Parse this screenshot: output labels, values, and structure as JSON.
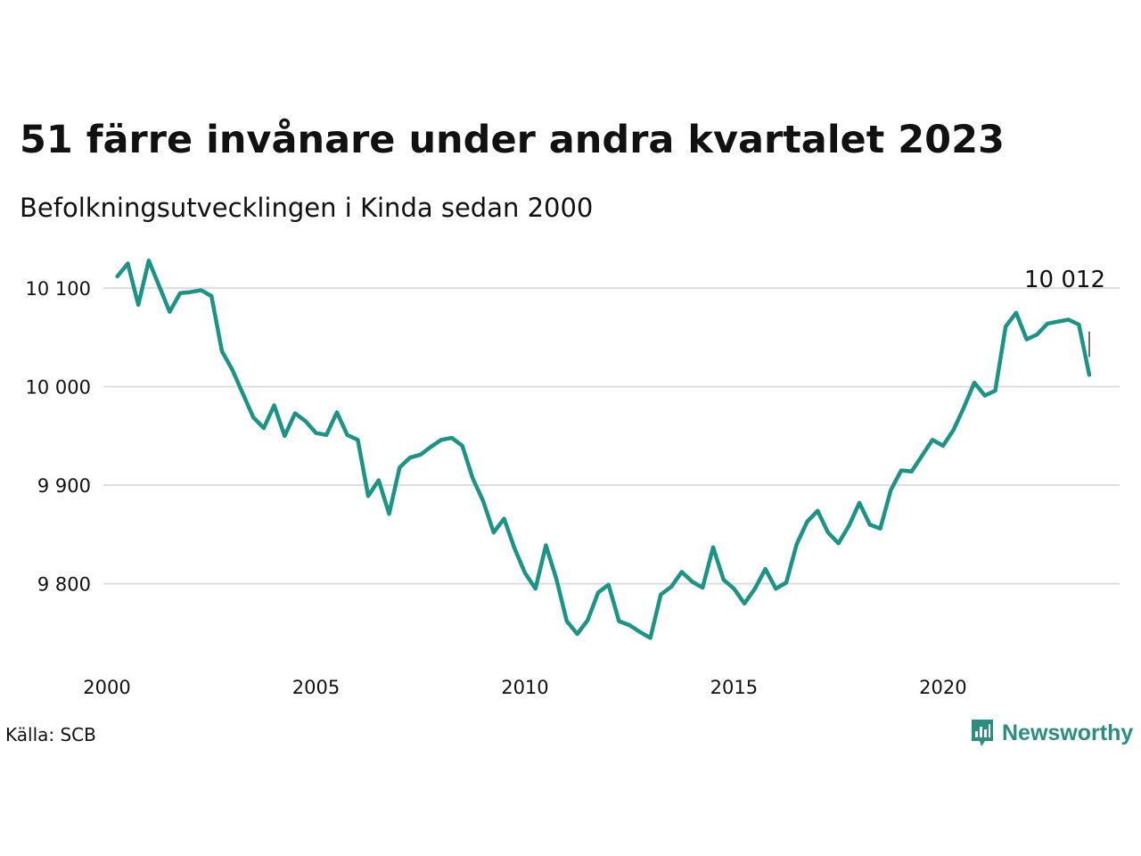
{
  "title": "51 färre invånare under andra kvartalet 2023",
  "subtitle": "Befolkningsutvecklingen i Kinda sedan 2000",
  "source": "Källa: SCB",
  "brand": {
    "name": "Newsworthy",
    "icon": "newsworthy-logo-icon"
  },
  "colors": {
    "line": "#1a9585",
    "grid": "#dddddd",
    "text": "#111111",
    "brand": "#2a8f80"
  },
  "chart_data": {
    "type": "line",
    "title": "51 färre invånare under andra kvartalet 2023",
    "subtitle": "Befolkningsutvecklingen i Kinda sedan 2000",
    "xlabel": "",
    "ylabel": "",
    "x_ticks": [
      "2000",
      "2005",
      "2010",
      "2015",
      "2020"
    ],
    "y_ticks": [
      "9 800",
      "9 900",
      "10 000",
      "10 100"
    ],
    "xlim": [
      2000,
      2023.5
    ],
    "ylim": [
      9730,
      10130
    ],
    "grid": "horizontal",
    "last_value_label": "10 012",
    "series": [
      {
        "x": [
          2000.25,
          2000.5,
          2000.75,
          2001.0,
          2001.25,
          2001.5,
          2001.75,
          2002.0,
          2002.25,
          2002.5,
          2002.75,
          2003.0,
          2003.25,
          2003.5,
          2003.75,
          2004.0,
          2004.25,
          2004.5,
          2004.75,
          2005.0,
          2005.25,
          2005.5,
          2005.75,
          2006.0,
          2006.25,
          2006.5,
          2006.75,
          2007.0,
          2007.25,
          2007.5,
          2007.75,
          2008.0,
          2008.25,
          2008.5,
          2008.75,
          2009.0,
          2009.25,
          2009.5,
          2009.75,
          2010.0,
          2010.25,
          2010.5,
          2010.75,
          2011.0,
          2011.25,
          2011.5,
          2011.75,
          2012.0,
          2012.25,
          2012.5,
          2012.75,
          2013.0,
          2013.25,
          2013.5,
          2013.75,
          2014.0,
          2014.25,
          2014.5,
          2014.75,
          2015.0,
          2015.25,
          2015.5,
          2015.75,
          2016.0,
          2016.25,
          2016.5,
          2016.75,
          2017.0,
          2017.25,
          2017.5,
          2017.75,
          2018.0,
          2018.25,
          2018.5,
          2018.75,
          2019.0,
          2019.25,
          2019.5,
          2019.75,
          2020.0,
          2020.25,
          2020.5,
          2020.75,
          2021.0,
          2021.25,
          2021.5,
          2021.75,
          2022.0,
          2022.25,
          2022.5,
          2022.75,
          2023.0,
          2023.25,
          2023.5
        ],
        "y": [
          10112,
          10125,
          10083,
          10128,
          10102,
          10076,
          10095,
          10096,
          10098,
          10092,
          10036,
          10017,
          9993,
          9969,
          9958,
          9981,
          9950,
          9973,
          9965,
          9953,
          9951,
          9974,
          9951,
          9946,
          9889,
          9905,
          9871,
          9918,
          9928,
          9931,
          9939,
          9946,
          9948,
          9940,
          9907,
          9884,
          9852,
          9866,
          9836,
          9811,
          9795,
          9839,
          9805,
          9762,
          9749,
          9763,
          9791,
          9799,
          9762,
          9758,
          9751,
          9745,
          9789,
          9797,
          9812,
          9802,
          9796,
          9837,
          9804,
          9795,
          9780,
          9795,
          9815,
          9795,
          9801,
          9840,
          9863,
          9874,
          9852,
          9841,
          9859,
          9882,
          9860,
          9856,
          9895,
          9915,
          9914,
          9930,
          9946,
          9940,
          9956,
          9979,
          10004,
          9991,
          9996,
          10061,
          10075,
          10048,
          10053,
          10064,
          10066,
          10068,
          10063,
          10012
        ]
      }
    ]
  }
}
